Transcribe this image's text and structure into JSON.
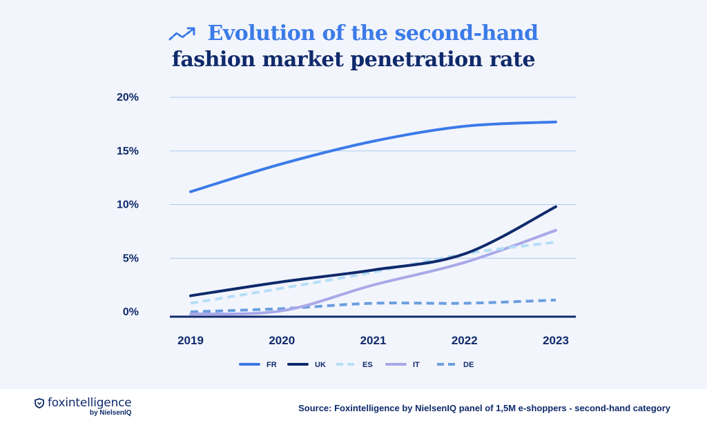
{
  "title": {
    "line1": "Evolution of the second-hand",
    "line2": "fashion market penetration rate",
    "icon": "trend-up-icon"
  },
  "chart_data": {
    "type": "line",
    "x": [
      "2019",
      "2020",
      "2021",
      "2022",
      "2023"
    ],
    "ylim": [
      0,
      20
    ],
    "y_ticks": [
      0,
      5,
      10,
      15,
      20
    ],
    "y_tick_labels": [
      "0%",
      "5%",
      "10%",
      "15%",
      "20%"
    ],
    "grid": true,
    "legend_position": "bottom",
    "series": [
      {
        "name": "FR",
        "values": [
          11.2,
          13.8,
          15.9,
          17.3,
          17.7
        ],
        "color": "#3b7be8",
        "dashed": false
      },
      {
        "name": "UK",
        "values": [
          1.5,
          2.8,
          3.9,
          5.4,
          9.8
        ],
        "color": "#0f2a6b",
        "dashed": false
      },
      {
        "name": "ES",
        "values": [
          0.8,
          2.2,
          3.7,
          5.4,
          6.5
        ],
        "color": "#b5def7",
        "dashed": true
      },
      {
        "name": "IT",
        "values": [
          -0.2,
          0.1,
          2.5,
          4.6,
          7.6
        ],
        "color": "#a9a8e8",
        "dashed": false
      },
      {
        "name": "DE",
        "values": [
          0.0,
          0.3,
          0.8,
          0.8,
          1.1
        ],
        "color": "#6a9ee0",
        "dashed": true
      }
    ]
  },
  "footer": {
    "brand": "foxintelligence",
    "brand_sub": "by NielsenIQ",
    "brand_icon": "shield-icon",
    "source": "Source: Foxintelligence by NielsenIQ panel of 1,5M e-shoppers - second-hand category"
  }
}
